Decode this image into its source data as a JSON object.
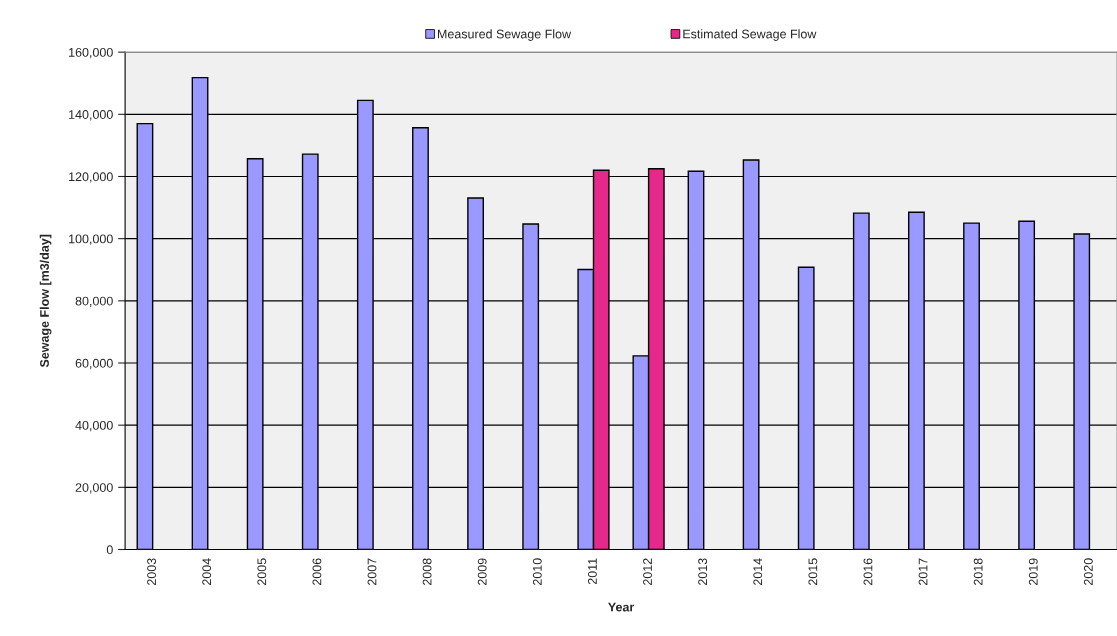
{
  "chart_data": {
    "type": "bar",
    "xlabel": "Year",
    "ylabel": "Sewage Flow [m3/day]",
    "categories": [
      "2003",
      "2004",
      "2005",
      "2006",
      "2007",
      "2008",
      "2009",
      "2010",
      "2011",
      "2012",
      "2013",
      "2014",
      "2015",
      "2016",
      "2017",
      "2018",
      "2019",
      "2020"
    ],
    "series": [
      {
        "name": "Measured Sewage Flow",
        "color": "#9999ff",
        "values": [
          137000,
          151800,
          125700,
          127200,
          144500,
          135700,
          113100,
          104700,
          90100,
          62300,
          121700,
          125300,
          90800,
          108200,
          108500,
          105000,
          105600,
          101500
        ]
      },
      {
        "name": "Estimated Sewage Flow",
        "color": "#e6288a",
        "values": [
          null,
          null,
          null,
          null,
          null,
          null,
          null,
          null,
          122000,
          122500,
          null,
          null,
          null,
          null,
          null,
          null,
          null,
          null
        ]
      }
    ],
    "ylim": [
      0,
      160000
    ],
    "yticks": [
      {
        "value": 0,
        "label": "0"
      },
      {
        "value": 20000,
        "label": "20,000"
      },
      {
        "value": 40000,
        "label": "40,000"
      },
      {
        "value": 60000,
        "label": "60,000"
      },
      {
        "value": 80000,
        "label": "80,000"
      },
      {
        "value": 100000,
        "label": "100,000"
      },
      {
        "value": 120000,
        "label": "120,000"
      },
      {
        "value": 140000,
        "label": "140,000"
      },
      {
        "value": 160000,
        "label": "160,000"
      }
    ],
    "grid": "y",
    "legend": "top"
  }
}
